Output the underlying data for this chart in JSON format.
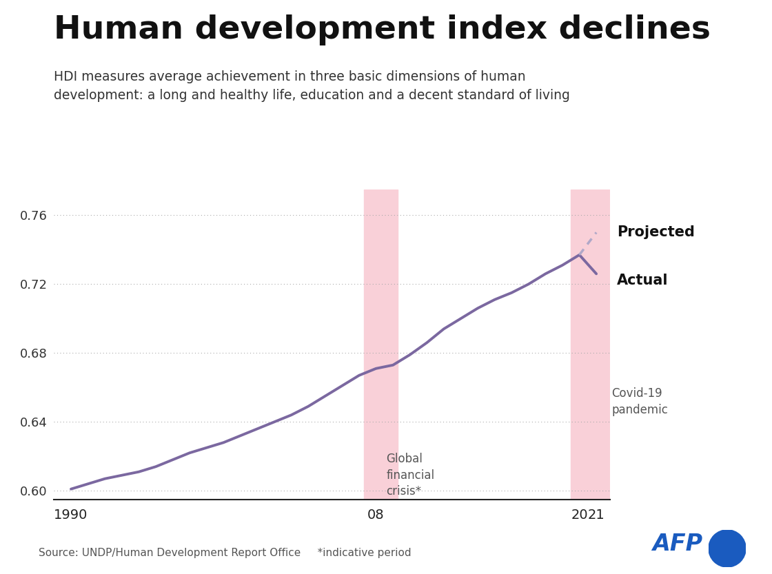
{
  "title": "Human development index declines",
  "subtitle": "HDI measures average achievement in three basic dimensions of human\ndevelopment: a long and healthy life, education and a decent standard of living",
  "source": "Source: UNDP/Human Development Report Office     *indicative period",
  "background_color": "#ffffff",
  "line_color": "#7b68a0",
  "projected_color": "#b0a8c8",
  "highlight_color": "#f9d0d8",
  "ylim": [
    0.595,
    0.775
  ],
  "yticks": [
    0.6,
    0.64,
    0.68,
    0.72,
    0.76
  ],
  "xlim": [
    1989.0,
    2021.8
  ],
  "gfc_band": [
    2007.3,
    2009.3
  ],
  "covid_band": [
    2019.5,
    2021.8
  ],
  "hdi_data": {
    "years": [
      1990,
      1991,
      1992,
      1993,
      1994,
      1995,
      1996,
      1997,
      1998,
      1999,
      2000,
      2001,
      2002,
      2003,
      2004,
      2005,
      2006,
      2007,
      2008,
      2009,
      2010,
      2011,
      2012,
      2013,
      2014,
      2015,
      2016,
      2017,
      2018,
      2019,
      2020
    ],
    "values": [
      0.601,
      0.604,
      0.607,
      0.609,
      0.611,
      0.614,
      0.618,
      0.622,
      0.625,
      0.628,
      0.632,
      0.636,
      0.64,
      0.644,
      0.649,
      0.655,
      0.661,
      0.667,
      0.671,
      0.673,
      0.679,
      0.686,
      0.694,
      0.7,
      0.706,
      0.711,
      0.715,
      0.72,
      0.726,
      0.731,
      0.737
    ]
  },
  "actual_2021": 0.726,
  "projected_2021": 0.75,
  "projected_label": "Projected",
  "actual_label": "Actual",
  "gfc_label": "Global\nfinancial\ncrisis*",
  "covid_label": "Covid-19\npandemic",
  "afp_color": "#1a5bbf"
}
